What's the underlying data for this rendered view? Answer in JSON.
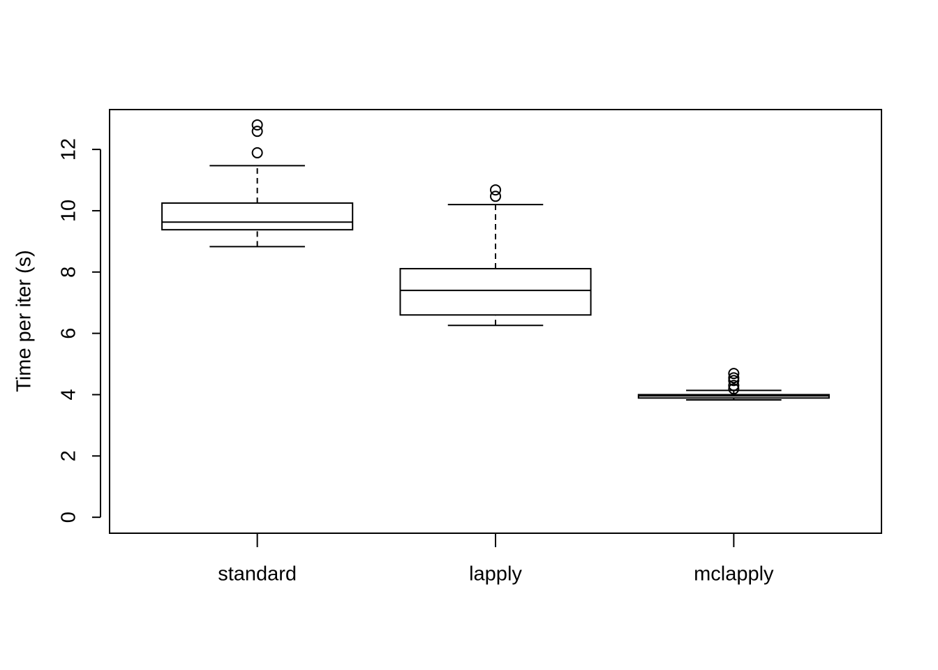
{
  "chart_data": {
    "type": "boxplot",
    "y_label": "Time per iter (s)",
    "categories": [
      "standard",
      "lapply",
      "mclapply"
    ],
    "boxes": [
      {
        "min": 8.83,
        "q1": 9.38,
        "median": 9.63,
        "q3": 10.25,
        "max": 11.47,
        "outliers": [
          11.89,
          12.59,
          12.8
        ]
      },
      {
        "min": 6.26,
        "q1": 6.6,
        "median": 7.4,
        "q3": 8.11,
        "max": 10.2,
        "outliers": [
          10.47,
          10.68
        ]
      },
      {
        "min": 3.83,
        "q1": 3.89,
        "median": 3.96,
        "q3": 4.0,
        "max": 4.14,
        "outliers": [
          4.19,
          4.3,
          4.46,
          4.55,
          4.69
        ]
      }
    ],
    "color": "#000000",
    "ylim": [
      -0.52,
      13.3
    ],
    "yticks": [
      0,
      2,
      4,
      6,
      8,
      10,
      12
    ]
  }
}
